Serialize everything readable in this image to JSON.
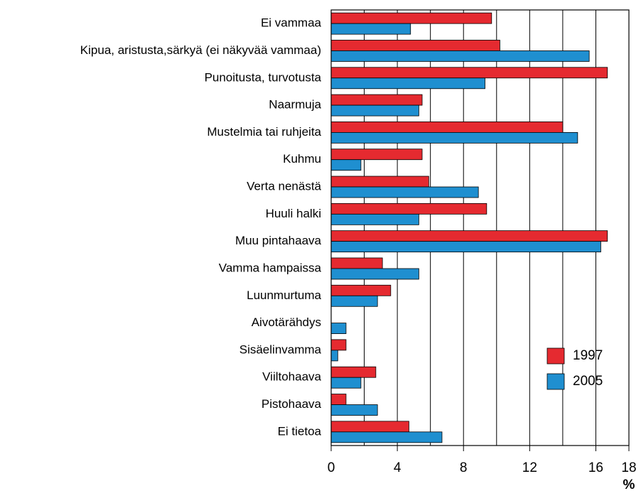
{
  "chart_data": {
    "type": "bar",
    "orientation": "horizontal",
    "categories": [
      "Ei vammaa",
      "Kipua, aristusta,särkyä (ei näkyvää vammaa)",
      "Punoitusta, turvotusta",
      "Naarmuja",
      "Mustelmia tai ruhjeita",
      "Kuhmu",
      "Verta nenästä",
      "Huuli halki",
      "Muu pintahaava",
      "Vamma hampaissa",
      "Luunmurtuma",
      "Aivotärähdys",
      "Sisäelinvamma",
      "Viiltohaava",
      "Pistohaava",
      "Ei tietoa"
    ],
    "series": [
      {
        "name": "1997",
        "color": "#e52a30",
        "values": [
          9.7,
          10.2,
          16.7,
          5.5,
          14.0,
          5.5,
          5.9,
          9.4,
          16.7,
          3.1,
          3.6,
          0,
          0.9,
          2.7,
          0.9,
          4.7
        ]
      },
      {
        "name": "2005",
        "color": "#1f8fd0",
        "values": [
          4.8,
          15.6,
          9.3,
          5.3,
          14.9,
          1.8,
          8.9,
          5.3,
          16.3,
          5.3,
          2.8,
          0.9,
          0.4,
          1.8,
          2.8,
          6.7
        ]
      }
    ],
    "xlim": [
      0,
      18
    ],
    "xticks": [
      0,
      4,
      8,
      12,
      16,
      18
    ],
    "grid_lines": [
      2,
      4,
      6,
      8,
      10,
      12,
      14,
      16
    ],
    "xlabel": "%",
    "legend": "lower right"
  }
}
